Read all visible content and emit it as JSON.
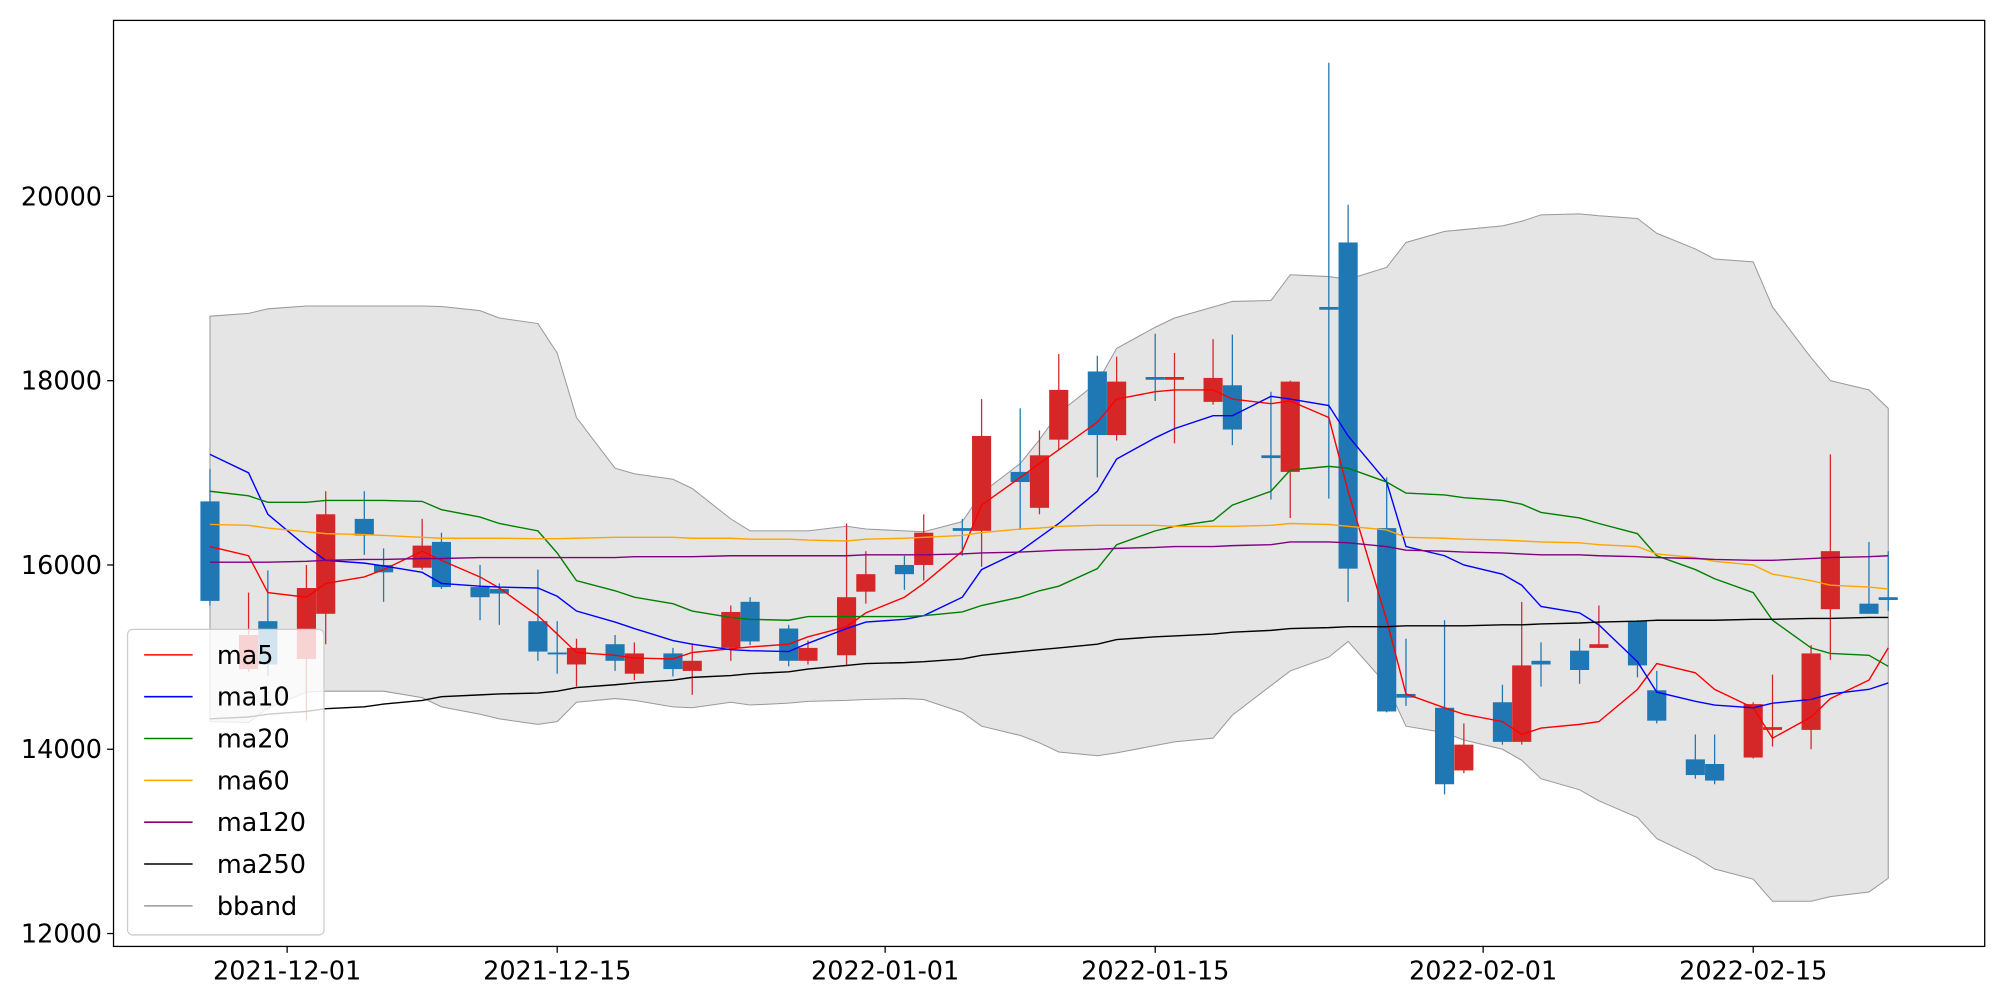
{
  "chart_data": {
    "type": "candlestick",
    "x": [
      "2021-11-27",
      "2021-11-29",
      "2021-11-30",
      "2021-12-02",
      "2021-12-03",
      "2021-12-05",
      "2021-12-06",
      "2021-12-08",
      "2021-12-09",
      "2021-12-11",
      "2021-12-12",
      "2021-12-14",
      "2021-12-15",
      "2021-12-16",
      "2021-12-18",
      "2021-12-19",
      "2021-12-21",
      "2021-12-22",
      "2021-12-24",
      "2021-12-25",
      "2021-12-27",
      "2021-12-28",
      "2021-12-30",
      "2021-12-31",
      "2022-01-02",
      "2022-01-03",
      "2022-01-05",
      "2022-01-06",
      "2022-01-08",
      "2022-01-09",
      "2022-01-10",
      "2022-01-12",
      "2022-01-13",
      "2022-01-15",
      "2022-01-16",
      "2022-01-18",
      "2022-01-19",
      "2022-01-21",
      "2022-01-22",
      "2022-01-24",
      "2022-01-25",
      "2022-01-27",
      "2022-01-28",
      "2022-01-30",
      "2022-01-31",
      "2022-02-02",
      "2022-02-03",
      "2022-02-04",
      "2022-02-06",
      "2022-02-07",
      "2022-02-09",
      "2022-02-10",
      "2022-02-12",
      "2022-02-13",
      "2022-02-15",
      "2022-02-16",
      "2022-02-18",
      "2022-02-19",
      "2022-02-21",
      "2022-02-22"
    ],
    "open": [
      16690,
      14870,
      15390,
      14980,
      15470,
      16500,
      16000,
      15970,
      16250,
      15760,
      15740,
      15390,
      15050,
      14920,
      15140,
      14820,
      15040,
      14850,
      15100,
      15600,
      15310,
      14960,
      15020,
      15710,
      16000,
      16000,
      16400,
      16370,
      17010,
      16620,
      17360,
      18100,
      17410,
      18040,
      18010,
      17770,
      17950,
      17190,
      17010,
      18800,
      19500,
      16400,
      14600,
      14450,
      13770,
      14510,
      14080,
      14960,
      15070,
      15100,
      15390,
      14640,
      13890,
      13840,
      13910,
      14210,
      14210,
      15520,
      15580,
      15650
    ],
    "high": [
      17040,
      15700,
      15940,
      16000,
      16800,
      16800,
      16180,
      16500,
      16350,
      16000,
      15800,
      15950,
      15390,
      15200,
      15240,
      15160,
      15100,
      15150,
      15560,
      15650,
      15350,
      15180,
      16450,
      16150,
      16100,
      16550,
      16500,
      17800,
      17700,
      17460,
      18290,
      18270,
      18260,
      18510,
      18300,
      18450,
      18500,
      17880,
      18000,
      21450,
      19910,
      16950,
      15200,
      15400,
      14280,
      14700,
      15600,
      15160,
      15200,
      15560,
      15400,
      14850,
      14160,
      14160,
      14510,
      14810,
      15130,
      17200,
      16250,
      16150
    ],
    "low": [
      15560,
      14840,
      14800,
      14310,
      15140,
      16110,
      15600,
      15950,
      15740,
      15400,
      15350,
      14960,
      14820,
      14680,
      14850,
      14750,
      14790,
      14590,
      14960,
      15130,
      14900,
      14920,
      14900,
      15580,
      15730,
      15830,
      16100,
      15980,
      16380,
      16550,
      17250,
      16950,
      17350,
      17780,
      17320,
      17740,
      17300,
      16710,
      16510,
      16720,
      15600,
      14400,
      14470,
      13510,
      13740,
      14050,
      14050,
      14680,
      14710,
      15100,
      14780,
      14280,
      13680,
      13620,
      13900,
      14030,
      14000,
      14970,
      15470,
      15500
    ],
    "close": [
      15610,
      15240,
      14920,
      15750,
      16550,
      16320,
      15920,
      16210,
      15760,
      15650,
      15690,
      15060,
      15040,
      15100,
      14960,
      15040,
      14870,
      14960,
      15490,
      15170,
      14960,
      15100,
      15650,
      15900,
      15900,
      16350,
      16370,
      17400,
      16900,
      17190,
      17900,
      17410,
      17990,
      18010,
      18040,
      18030,
      17470,
      17160,
      17990,
      18770,
      15960,
      14410,
      14560,
      13620,
      14050,
      14080,
      14910,
      14920,
      14860,
      15140,
      14910,
      14310,
      13720,
      13660,
      14490,
      14240,
      15040,
      16150,
      15470,
      15620
    ],
    "up_color": "#d62728",
    "down_color": "#1f77b4",
    "series": [
      {
        "name": "ma5",
        "color": "#ff0000",
        "values": [
          16200,
          16100,
          15700,
          15650,
          15800,
          15870,
          15950,
          16150,
          16050,
          15870,
          15750,
          15450,
          15250,
          15050,
          15020,
          14990,
          14980,
          15050,
          15090,
          15110,
          15140,
          15220,
          15330,
          15480,
          15650,
          15800,
          16150,
          16650,
          16950,
          17100,
          17250,
          17550,
          17800,
          17880,
          17900,
          17900,
          17800,
          17750,
          17780,
          17600,
          16800,
          15400,
          14600,
          14450,
          14380,
          14300,
          14160,
          14230,
          14270,
          14300,
          14650,
          14930,
          14830,
          14650,
          14450,
          14120,
          14350,
          14550,
          14750,
          15100
        ]
      },
      {
        "name": "ma10",
        "color": "#0000ff",
        "values": [
          17200,
          17000,
          16550,
          16200,
          16050,
          16020,
          15990,
          15920,
          15800,
          15770,
          15760,
          15750,
          15660,
          15500,
          15380,
          15310,
          15180,
          15140,
          15080,
          15070,
          15060,
          15150,
          15310,
          15380,
          15410,
          15450,
          15650,
          15950,
          16150,
          16300,
          16450,
          16800,
          17150,
          17380,
          17480,
          17620,
          17620,
          17830,
          17800,
          17730,
          17400,
          16900,
          16200,
          16100,
          16000,
          15900,
          15780,
          15550,
          15480,
          15350,
          14950,
          14620,
          14520,
          14480,
          14450,
          14500,
          14540,
          14600,
          14650,
          14720
        ]
      },
      {
        "name": "ma20",
        "color": "#008000",
        "values": [
          16800,
          16750,
          16680,
          16680,
          16700,
          16700,
          16700,
          16690,
          16600,
          16520,
          16450,
          16370,
          16130,
          15830,
          15720,
          15650,
          15580,
          15500,
          15430,
          15410,
          15400,
          15440,
          15440,
          15440,
          15440,
          15450,
          15490,
          15560,
          15650,
          15720,
          15770,
          15960,
          16220,
          16370,
          16420,
          16480,
          16650,
          16800,
          17030,
          17070,
          17050,
          16900,
          16780,
          16760,
          16730,
          16700,
          16660,
          16570,
          16510,
          16450,
          16340,
          16100,
          15950,
          15850,
          15700,
          15400,
          15100,
          15040,
          15020,
          14900
        ]
      },
      {
        "name": "ma60",
        "color": "#ffa500",
        "values": [
          16440,
          16430,
          16400,
          16360,
          16340,
          16330,
          16320,
          16300,
          16290,
          16290,
          16290,
          16285,
          16285,
          16290,
          16300,
          16300,
          16300,
          16290,
          16290,
          16280,
          16280,
          16270,
          16260,
          16280,
          16290,
          16300,
          16320,
          16350,
          16390,
          16400,
          16420,
          16430,
          16430,
          16430,
          16420,
          16420,
          16420,
          16430,
          16450,
          16440,
          16420,
          16380,
          16300,
          16290,
          16280,
          16270,
          16260,
          16250,
          16240,
          16220,
          16200,
          16120,
          16080,
          16040,
          16000,
          15900,
          15830,
          15780,
          15760,
          15740
        ]
      },
      {
        "name": "ma120",
        "color": "#800080",
        "values": [
          16030,
          16030,
          16030,
          16040,
          16050,
          16060,
          16060,
          16070,
          16070,
          16080,
          16080,
          16080,
          16080,
          16080,
          16080,
          16090,
          16090,
          16090,
          16100,
          16100,
          16100,
          16100,
          16100,
          16110,
          16110,
          16110,
          16120,
          16130,
          16140,
          16150,
          16160,
          16170,
          16180,
          16190,
          16200,
          16200,
          16210,
          16220,
          16250,
          16250,
          16240,
          16200,
          16160,
          16150,
          16140,
          16130,
          16120,
          16110,
          16110,
          16100,
          16090,
          16080,
          16070,
          16060,
          16050,
          16050,
          16070,
          16080,
          16090,
          16100
        ]
      },
      {
        "name": "ma250",
        "color": "#000000",
        "values": [
          14330,
          14350,
          14380,
          14410,
          14440,
          14460,
          14490,
          14530,
          14570,
          14590,
          14600,
          14610,
          14630,
          14670,
          14700,
          14720,
          14750,
          14780,
          14800,
          14820,
          14840,
          14870,
          14910,
          14930,
          14940,
          14950,
          14980,
          15020,
          15060,
          15080,
          15100,
          15140,
          15190,
          15220,
          15230,
          15250,
          15270,
          15290,
          15310,
          15320,
          15330,
          15330,
          15340,
          15340,
          15340,
          15350,
          15350,
          15360,
          15370,
          15380,
          15390,
          15400,
          15400,
          15400,
          15410,
          15410,
          15420,
          15420,
          15430,
          15430
        ]
      }
    ],
    "bband": {
      "name": "bband",
      "color": "#999999",
      "fill": "#e5e5e5",
      "upper": [
        18700,
        18730,
        18780,
        18810,
        18810,
        18810,
        18810,
        18810,
        18805,
        18760,
        18680,
        18620,
        18300,
        17600,
        17050,
        16990,
        16930,
        16830,
        16500,
        16370,
        16370,
        16370,
        16420,
        16390,
        16370,
        16360,
        16470,
        16780,
        17100,
        17360,
        17650,
        17980,
        18350,
        18580,
        18680,
        18800,
        18860,
        18870,
        19150,
        19130,
        19100,
        19230,
        19500,
        19620,
        19640,
        19680,
        19730,
        19800,
        19810,
        19790,
        19760,
        19600,
        19430,
        19320,
        19290,
        18800,
        18250,
        18000,
        17900,
        17700
      ],
      "lower": [
        14300,
        14290,
        14450,
        14620,
        14630,
        14630,
        14630,
        14560,
        14460,
        14380,
        14330,
        14270,
        14300,
        14510,
        14550,
        14530,
        14460,
        14450,
        14510,
        14480,
        14500,
        14520,
        14530,
        14540,
        14550,
        14540,
        14400,
        14250,
        14150,
        14070,
        13970,
        13930,
        13960,
        14040,
        14080,
        14120,
        14370,
        14690,
        14850,
        15000,
        15170,
        14700,
        14250,
        14180,
        14100,
        14000,
        13880,
        13680,
        13560,
        13440,
        13260,
        13030,
        12830,
        12700,
        12590,
        12350,
        12350,
        12400,
        12450,
        12600
      ]
    },
    "xlim": [
      "2021-11-22",
      "2022-02-27"
    ],
    "xticks": [
      "2021-12-01",
      "2021-12-15",
      "2022-01-01",
      "2022-01-15",
      "2022-02-01",
      "2022-02-15"
    ],
    "ylim": [
      11860,
      21910
    ],
    "yticks": [
      12000,
      14000,
      16000,
      18000,
      20000
    ],
    "legend": "lower left"
  }
}
